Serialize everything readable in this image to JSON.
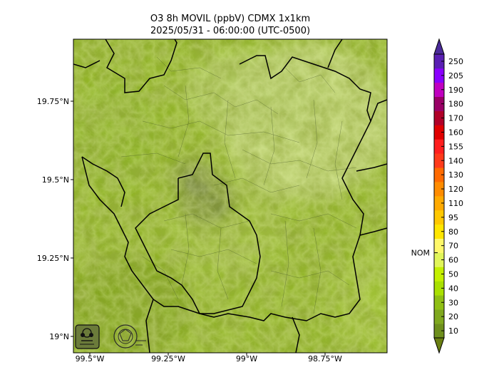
{
  "title": {
    "line1": "O3 8h MOVIL (ppbV) CDMX 1x1km",
    "line2": "2025/05/31 - 06:00:00 (UTC-0500)"
  },
  "map": {
    "lat_labels": [
      "19.75°N",
      "19.5°N",
      "19.25°N",
      "19°N"
    ],
    "lon_labels": [
      "99.5°W",
      "99.25°W",
      "99°W",
      "98.75°W"
    ],
    "logos": [
      "sedema-logo",
      "ciudad-de-mexico-seal"
    ]
  },
  "colorbar": {
    "levels": [
      "10",
      "20",
      "30",
      "40",
      "50",
      "60",
      "70",
      "80",
      "95",
      "110",
      "120",
      "130",
      "140",
      "155",
      "160",
      "170",
      "180",
      "190",
      "205",
      "250"
    ],
    "colors": [
      "#6e8f1c",
      "#7fa81e",
      "#8fbf14",
      "#a9e000",
      "#c4f000",
      "#e1f55a",
      "#fff86a",
      "#ffe600",
      "#ffc800",
      "#ffaa00",
      "#ff8c00",
      "#ff6a00",
      "#ff3a1a",
      "#ff1e1e",
      "#e00000",
      "#b00028",
      "#990066",
      "#c000c0",
      "#8a00ff",
      "#5a1fb3"
    ],
    "top_arrow_color": "#4b2a9a",
    "bottom_arrow_color": "#6a7f12",
    "nom_label": "NOM",
    "nom_value": 65
  }
}
